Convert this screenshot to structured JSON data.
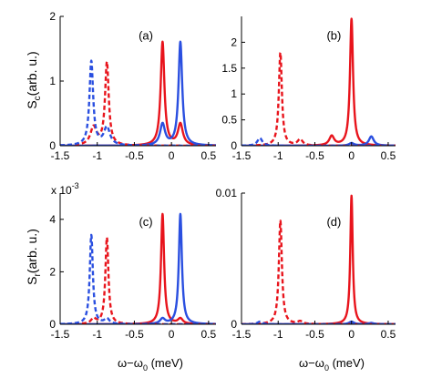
{
  "figure": {
    "shared_xlabel": {
      "main": "ω−ω",
      "sub": "0",
      "unit": " (meV)"
    },
    "y_label_top": {
      "main": "S",
      "sub": "c",
      "rest": "(arb. u.)"
    },
    "y_label_bottom": {
      "main": "S",
      "sub": "r",
      "rest": "(arb. u.)"
    },
    "exponent_label": {
      "base": "x 10",
      "power": "-3"
    }
  },
  "colors": {
    "red": "#e8141c",
    "blue": "#2a4fe0",
    "axis": "#000000"
  },
  "chart_data": [
    {
      "id": "a",
      "type": "line",
      "panel_label": "(a)",
      "xlim": [
        -1.5,
        0.6
      ],
      "ylim": [
        0,
        2
      ],
      "xticks": [
        -1.5,
        -1,
        -0.5,
        0,
        0.5
      ],
      "xtick_labels": [
        "-1.5",
        "-1",
        "-0.5",
        "0",
        "0.5"
      ],
      "yticks": [
        0,
        1,
        2
      ],
      "ytick_labels": [
        "0",
        "1",
        "2"
      ],
      "xlabel": "",
      "series": [
        {
          "color": "red",
          "dash": false,
          "peaks": [
            [
              -0.12,
              1.6,
              0.03
            ],
            [
              0.12,
              0.33,
              0.04
            ]
          ]
        },
        {
          "color": "blue",
          "dash": false,
          "peaks": [
            [
              0.12,
              1.6,
              0.03
            ],
            [
              -0.12,
              0.33,
              0.04
            ]
          ]
        },
        {
          "color": "red",
          "dash": true,
          "peaks": [
            [
              -0.87,
              1.28,
              0.03
            ],
            [
              -1.05,
              0.28,
              0.05
            ]
          ]
        },
        {
          "color": "blue",
          "dash": true,
          "peaks": [
            [
              -1.08,
              1.3,
              0.03
            ],
            [
              -0.87,
              0.28,
              0.05
            ]
          ]
        }
      ]
    },
    {
      "id": "b",
      "type": "line",
      "panel_label": "(b)",
      "xlim": [
        -1.5,
        0.6
      ],
      "ylim": [
        0,
        2.5
      ],
      "xticks": [
        -1.5,
        -1,
        -0.5,
        0,
        0.5
      ],
      "xtick_labels": [
        "-1.5",
        "-1",
        "-0.5",
        "0",
        "0.5"
      ],
      "yticks": [
        0,
        0.5,
        1,
        1.5,
        2
      ],
      "ytick_labels": [
        "0",
        "0.5",
        "1",
        "1.5",
        "2"
      ],
      "xlabel": "",
      "series": [
        {
          "color": "red",
          "dash": false,
          "peaks": [
            [
              0.0,
              2.45,
              0.025
            ],
            [
              -0.27,
              0.18,
              0.04
            ]
          ]
        },
        {
          "color": "blue",
          "dash": false,
          "peaks": [
            [
              0.0,
              0.05,
              0.04
            ],
            [
              0.27,
              0.18,
              0.04
            ]
          ]
        },
        {
          "color": "red",
          "dash": true,
          "peaks": [
            [
              -0.97,
              1.8,
              0.025
            ],
            [
              -0.7,
              0.12,
              0.04
            ]
          ]
        },
        {
          "color": "blue",
          "dash": true,
          "peaks": [
            [
              -1.25,
              0.15,
              0.04
            ]
          ]
        }
      ]
    },
    {
      "id": "c",
      "type": "line",
      "panel_label": "(c)",
      "xlim": [
        -1.5,
        0.6
      ],
      "ylim": [
        0,
        5
      ],
      "xticks": [
        -1.5,
        -1,
        -0.5,
        0,
        0.5
      ],
      "xtick_labels": [
        "-1.5",
        "-1",
        "-0.5",
        "0",
        "0.5"
      ],
      "yticks": [
        0,
        2,
        4
      ],
      "ytick_labels": [
        "0",
        "2",
        "4"
      ],
      "xlabel": "shared",
      "series": [
        {
          "color": "red",
          "dash": false,
          "peaks": [
            [
              -0.12,
              4.2,
              0.025
            ],
            [
              0.12,
              0.2,
              0.04
            ]
          ]
        },
        {
          "color": "blue",
          "dash": false,
          "peaks": [
            [
              0.12,
              4.2,
              0.025
            ],
            [
              -0.12,
              0.2,
              0.04
            ]
          ]
        },
        {
          "color": "red",
          "dash": true,
          "peaks": [
            [
              -0.87,
              3.3,
              0.025
            ],
            [
              -1.05,
              0.2,
              0.04
            ]
          ]
        },
        {
          "color": "blue",
          "dash": true,
          "peaks": [
            [
              -1.08,
              3.4,
              0.025
            ],
            [
              -0.87,
              0.2,
              0.04
            ]
          ]
        }
      ]
    },
    {
      "id": "d",
      "type": "line",
      "panel_label": "(d)",
      "xlim": [
        -1.5,
        0.6
      ],
      "ylim": [
        0,
        0.01
      ],
      "xticks": [
        -1.5,
        -1,
        -0.5,
        0,
        0.5
      ],
      "xtick_labels": [
        "-1.5",
        "-1",
        "-0.5",
        "0",
        "0.5"
      ],
      "yticks": [
        0,
        0.01
      ],
      "ytick_labels": [
        "0",
        "0.01"
      ],
      "xlabel": "shared",
      "series": [
        {
          "color": "red",
          "dash": false,
          "peaks": [
            [
              0.0,
              0.0098,
              0.02
            ]
          ]
        },
        {
          "color": "blue",
          "dash": false,
          "peaks": [
            [
              0.0,
              0.0002,
              0.04
            ],
            [
              0.27,
              0.0001,
              0.04
            ]
          ]
        },
        {
          "color": "red",
          "dash": true,
          "peaks": [
            [
              -0.97,
              0.0079,
              0.025
            ],
            [
              -0.7,
              0.0002,
              0.04
            ]
          ]
        },
        {
          "color": "blue",
          "dash": true,
          "peaks": [
            [
              -1.25,
              0.0002,
              0.04
            ]
          ]
        }
      ]
    }
  ]
}
